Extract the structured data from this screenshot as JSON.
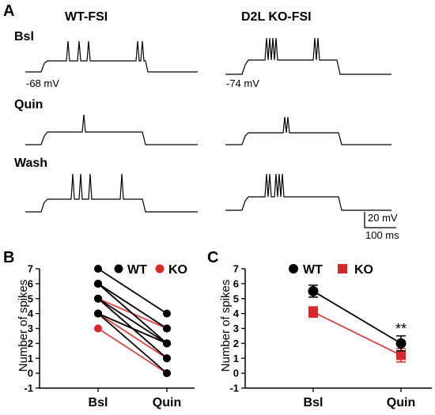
{
  "panel_a": {
    "letter": "A",
    "col_wt": "WT-FSI",
    "col_ko": "D2L KO-FSI",
    "row_bsl": "Bsl",
    "row_quin": "Quin",
    "row_wash": "Wash",
    "vm_wt": "-68 mV",
    "vm_ko": "-74 mV",
    "scale_mv": "20 mV",
    "scale_ms": "100 ms"
  },
  "panel_b_letter": "B",
  "panel_c_letter": "C",
  "colors": {
    "wt": "#000000",
    "ko": "#d62a2a",
    "ko_line": "#d64545"
  },
  "chart_data": [
    {
      "type": "line",
      "panel": "B",
      "categories": [
        "Bsl",
        "Quin"
      ],
      "ylabel": "Number of spikes",
      "ylim": [
        -1,
        7
      ],
      "yticks": [
        -1,
        0,
        1,
        2,
        3,
        4,
        5,
        6,
        7
      ],
      "legend": {
        "placement": "top-right",
        "items": [
          "WT",
          "KO"
        ]
      },
      "series": [
        {
          "name": "WT",
          "pairs": [
            [
              7,
              4
            ],
            [
              6,
              3
            ],
            [
              6,
              2
            ],
            [
              5,
              2
            ],
            [
              5,
              1
            ],
            [
              4,
              2
            ],
            [
              4,
              0
            ]
          ]
        },
        {
          "name": "KO",
          "pairs": [
            [
              6,
              3
            ],
            [
              6,
              2
            ],
            [
              5,
              3
            ],
            [
              5,
              1
            ],
            [
              4,
              2
            ],
            [
              4,
              1
            ],
            [
              3,
              0
            ]
          ]
        }
      ]
    },
    {
      "type": "line",
      "panel": "C",
      "categories": [
        "Bsl",
        "Quin"
      ],
      "ylabel": "Number of spikes",
      "ylim": [
        -1,
        7
      ],
      "yticks": [
        -1,
        0,
        1,
        2,
        3,
        4,
        5,
        6,
        7
      ],
      "legend": {
        "placement": "top",
        "items": [
          "WT",
          "KO"
        ]
      },
      "annotation": "**",
      "series": [
        {
          "name": "WT",
          "values": [
            5.5,
            2.0
          ],
          "errors": [
            0.4,
            0.5
          ]
        },
        {
          "name": "KO",
          "values": [
            4.1,
            1.2
          ],
          "errors": [
            0.35,
            0.45
          ]
        }
      ]
    }
  ]
}
